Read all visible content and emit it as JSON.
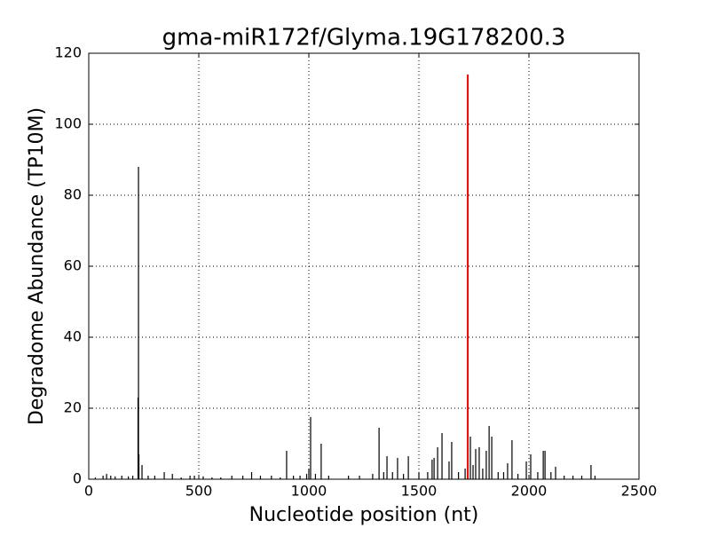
{
  "chart_data": {
    "type": "stem",
    "title": "gma-miR172f/Glyma.19G178200.3",
    "xlabel": "Nucleotide position (nt)",
    "ylabel": "Degradome Abundance (TP10M)",
    "xlim": [
      0,
      2500
    ],
    "xticks": [
      0,
      500,
      1000,
      1500,
      2000,
      2500
    ],
    "ylim": [
      0,
      120
    ],
    "yticks": [
      0,
      20,
      40,
      60,
      80,
      100,
      120
    ],
    "grid": true,
    "series": [
      {
        "color": "#000000",
        "x": [
          30,
          65,
          81,
          100,
          120,
          150,
          180,
          200,
          224,
          226,
          228,
          242,
          270,
          300,
          343,
          380,
          420,
          460,
          480,
          520,
          560,
          600,
          650,
          700,
          740,
          780,
          830,
          870,
          899,
          930,
          960,
          990,
          1000,
          1008,
          1030,
          1056,
          1090,
          1180,
          1230,
          1290,
          1319,
          1340,
          1355,
          1380,
          1403,
          1430,
          1452,
          1500,
          1540,
          1560,
          1569,
          1585,
          1605,
          1637,
          1649,
          1680,
          1710,
          1734,
          1746,
          1758,
          1774,
          1790,
          1806,
          1819,
          1831,
          1860,
          1885,
          1903,
          1923,
          1950,
          1988,
          2008,
          2040,
          2065,
          2073,
          2100,
          2121,
          2160,
          2200,
          2240,
          2282,
          2300
        ],
        "values": [
          0.5,
          1,
          1.5,
          1,
          0.8,
          1,
          0.8,
          1,
          23,
          88,
          7,
          4,
          1,
          1,
          2,
          1.5,
          0.5,
          1,
          1,
          0.8,
          0.5,
          0.5,
          1,
          1,
          2,
          1,
          1,
          0.5,
          8,
          1,
          1,
          1.5,
          3,
          17.5,
          1.5,
          10,
          1,
          1,
          1,
          1.5,
          14.5,
          2,
          6.5,
          2,
          6,
          1.5,
          6.5,
          2,
          2,
          5.5,
          6,
          9,
          13,
          5,
          10.5,
          2,
          3,
          12,
          4,
          8.5,
          9,
          3,
          8,
          15,
          12,
          2,
          2,
          4.5,
          11,
          1.5,
          5,
          7,
          2,
          8,
          8,
          2,
          3.5,
          1,
          1,
          1,
          4,
          1
        ]
      },
      {
        "color": "#ff0000",
        "x": [
          1722
        ],
        "values": [
          114
        ]
      }
    ]
  }
}
